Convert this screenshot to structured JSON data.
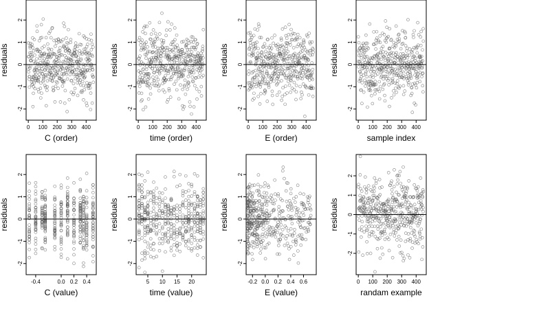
{
  "chart_data": [
    {
      "type": "scatter",
      "xlabel": "C (order)",
      "ylabel": "residuals",
      "xticks": [
        0,
        100,
        200,
        300,
        400
      ],
      "xlim": [
        -15,
        470
      ],
      "yticks": [
        -2,
        -1,
        0,
        1,
        2
      ],
      "ylim": [
        -2.5,
        2.9
      ],
      "hline": 0,
      "n": 450,
      "x_kind": "index",
      "x_range": [
        0,
        450
      ],
      "seed": 11,
      "y_spread": 0.75
    },
    {
      "type": "scatter",
      "xlabel": "time (order)",
      "ylabel": "residuals",
      "xticks": [
        0,
        100,
        200,
        300,
        400
      ],
      "xlim": [
        -15,
        470
      ],
      "yticks": [
        -2,
        -1,
        0,
        1,
        2
      ],
      "ylim": [
        -2.5,
        2.9
      ],
      "hline": 0,
      "n": 450,
      "x_kind": "index",
      "x_range": [
        0,
        450
      ],
      "seed": 23,
      "y_spread": 0.75
    },
    {
      "type": "scatter",
      "xlabel": "E (order)",
      "ylabel": "residuals",
      "xticks": [
        0,
        100,
        200,
        300,
        400
      ],
      "xlim": [
        -15,
        470
      ],
      "yticks": [
        -2,
        -1,
        0,
        1,
        2
      ],
      "ylim": [
        -2.5,
        2.9
      ],
      "hline": 0,
      "n": 450,
      "x_kind": "index",
      "x_range": [
        0,
        450
      ],
      "seed": 37,
      "y_spread": 0.75
    },
    {
      "type": "scatter",
      "xlabel": "sample index",
      "ylabel": "residuals",
      "xticks": [
        0,
        100,
        200,
        300,
        400
      ],
      "xlim": [
        -15,
        470
      ],
      "yticks": [
        -2,
        -1,
        0,
        1,
        2
      ],
      "ylim": [
        -2.5,
        2.9
      ],
      "hline": 0,
      "n": 450,
      "x_kind": "index",
      "x_range": [
        0,
        450
      ],
      "seed": 41,
      "y_spread": 0.75
    },
    {
      "type": "scatter",
      "xlabel": "C (value)",
      "ylabel": "residuals",
      "xticks": [
        -0.4,
        0.0,
        0.2,
        0.4
      ],
      "xtick_labels": [
        "-0.4",
        "0.0",
        "0.2",
        "0.4"
      ],
      "xlim": [
        -0.55,
        0.55
      ],
      "yticks": [
        -2,
        -1,
        0,
        1,
        2
      ],
      "ylim": [
        -2.5,
        2.9
      ],
      "hline": 0,
      "n": 450,
      "x_kind": "groups",
      "x_groups": [
        -0.5,
        -0.4,
        -0.3,
        -0.25,
        -0.1,
        0.0,
        0.1,
        0.2,
        0.3,
        0.35,
        0.4,
        0.5
      ],
      "seed": 53,
      "y_spread": 0.75
    },
    {
      "type": "scatter",
      "xlabel": "time (value)",
      "ylabel": "residuals",
      "xticks": [
        5,
        10,
        15,
        20
      ],
      "xtick_labels": [
        "5",
        "10",
        "15",
        "20"
      ],
      "xlim": [
        1,
        25
      ],
      "yticks": [
        -2,
        -1,
        0,
        1,
        2
      ],
      "ylim": [
        -2.5,
        2.9
      ],
      "hline": 0,
      "n": 450,
      "x_kind": "groups",
      "x_groups": [
        2,
        3,
        4,
        5,
        6,
        7,
        8,
        9,
        10,
        11,
        12,
        13,
        14,
        15,
        16,
        17,
        18,
        19,
        20,
        21,
        22,
        23,
        24
      ],
      "seed": 67,
      "y_spread": 0.75
    },
    {
      "type": "scatter",
      "xlabel": "E (value)",
      "ylabel": "residuals",
      "xticks": [
        -0.2,
        0.0,
        0.2,
        0.4,
        0.6
      ],
      "xtick_labels": [
        "-0.2",
        "0.0",
        "0.2",
        "0.4",
        "0.6"
      ],
      "xlim": [
        -0.3,
        0.8
      ],
      "yticks": [
        -2,
        -1,
        0,
        1,
        2
      ],
      "ylim": [
        -2.5,
        2.9
      ],
      "hline": 0,
      "n": 450,
      "x_kind": "skewed",
      "x_range": [
        -0.28,
        0.72
      ],
      "seed": 79,
      "y_spread": 0.75
    },
    {
      "type": "scatter",
      "xlabel": "randam example",
      "ylabel": "residuals",
      "xticks": [
        0,
        100,
        200,
        300,
        400
      ],
      "xlim": [
        -15,
        470
      ],
      "yticks": [
        -2,
        -1,
        0,
        1,
        2
      ],
      "ylim": [
        -3.1,
        3.1
      ],
      "hline": 0,
      "n": 450,
      "x_kind": "index",
      "x_range": [
        0,
        450
      ],
      "seed": 97,
      "y_spread": 1.0
    }
  ]
}
